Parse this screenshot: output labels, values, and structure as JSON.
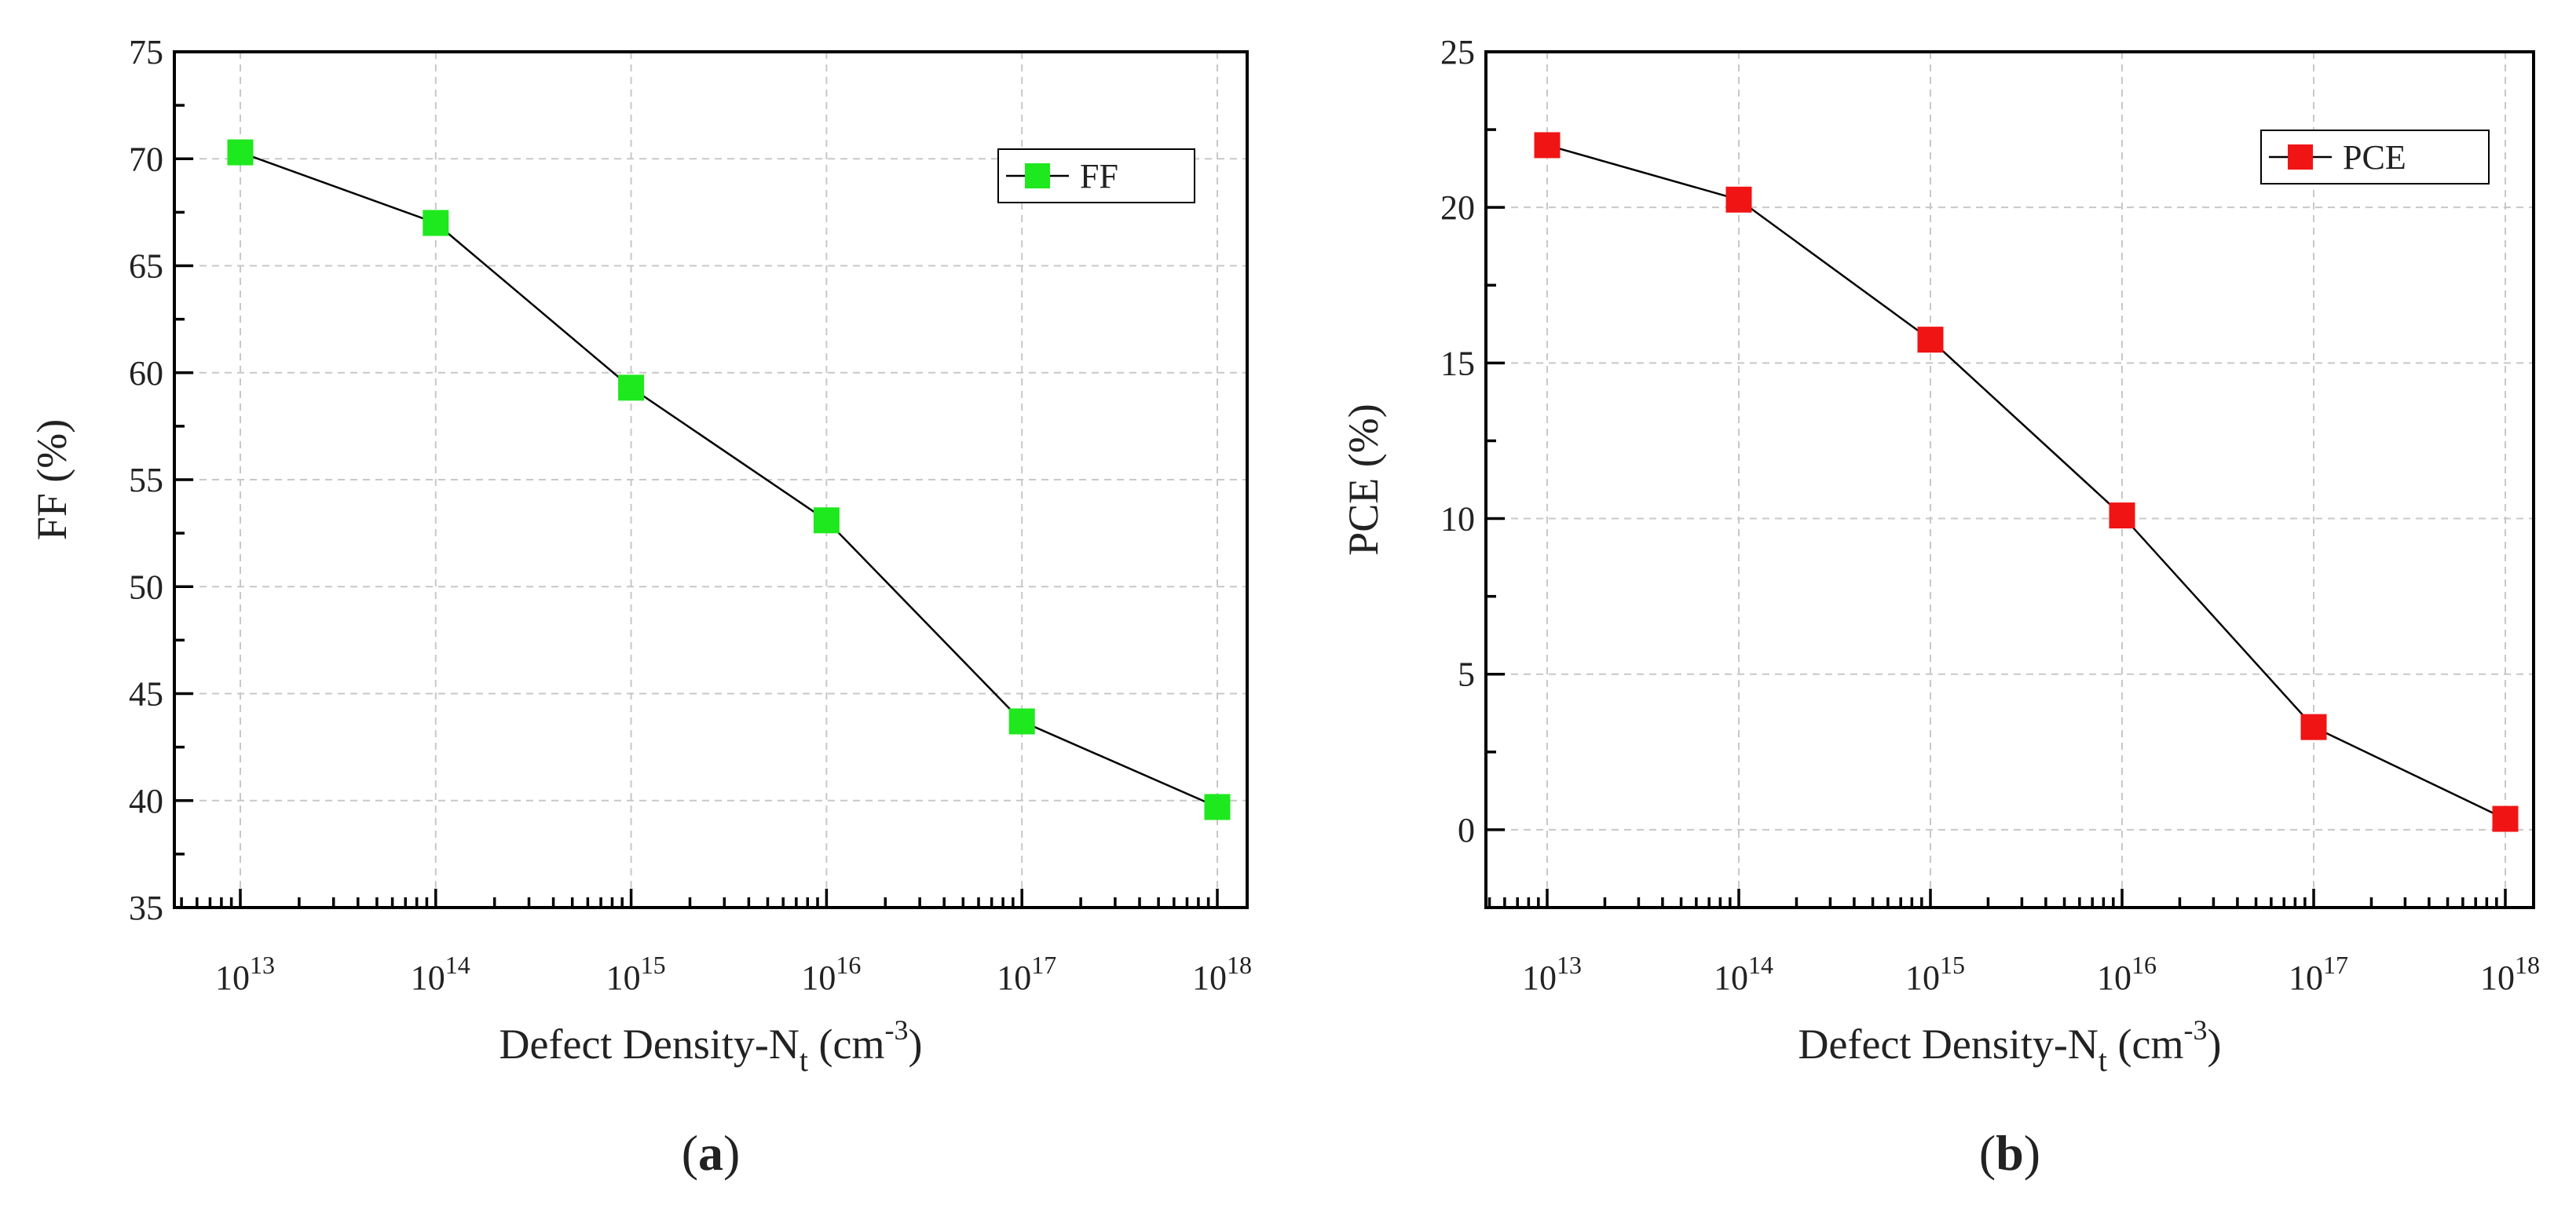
{
  "chart_data": [
    {
      "type": "line",
      "panel_label": "a",
      "x_scale": "log",
      "x": [
        10000000000000.0,
        100000000000000.0,
        1000000000000000.0,
        1e+16,
        1e+17,
        1e+18
      ],
      "xticks": [
        "13",
        "14",
        "15",
        "16",
        "17",
        "18"
      ],
      "xlabel": {
        "main": "Defect Density-N",
        "sub": "t",
        "unit_open": " (cm",
        "sup": "-3",
        "unit_close": ")"
      },
      "ylabel": "FF (%)",
      "ylim": [
        35,
        75
      ],
      "yticks": [
        35,
        40,
        45,
        50,
        55,
        60,
        65,
        70,
        75
      ],
      "grid": true,
      "legend": "top-right",
      "series": [
        {
          "name": "FF",
          "color": "#1ee81e",
          "marker": "square",
          "values": [
            70.3,
            67.0,
            59.3,
            53.1,
            43.7,
            39.7
          ]
        }
      ]
    },
    {
      "type": "line",
      "panel_label": "b",
      "x_scale": "log",
      "x": [
        10000000000000.0,
        100000000000000.0,
        1000000000000000.0,
        1e+16,
        1e+17,
        1e+18
      ],
      "xticks": [
        "13",
        "14",
        "15",
        "16",
        "17",
        "18"
      ],
      "xlabel": {
        "main": "Defect Density-N",
        "sub": "t",
        "unit_open": " (cm",
        "sup": "-3",
        "unit_close": ")"
      },
      "ylabel": "PCE (%)",
      "ylim": [
        -2.5,
        25
      ],
      "yticks": [
        0,
        5,
        10,
        15,
        20,
        25
      ],
      "grid": true,
      "legend": "top-right",
      "series": [
        {
          "name": "PCE",
          "color": "#f01414",
          "marker": "square",
          "values": [
            22.0,
            20.25,
            15.75,
            10.1,
            3.3,
            0.35
          ]
        }
      ]
    }
  ]
}
